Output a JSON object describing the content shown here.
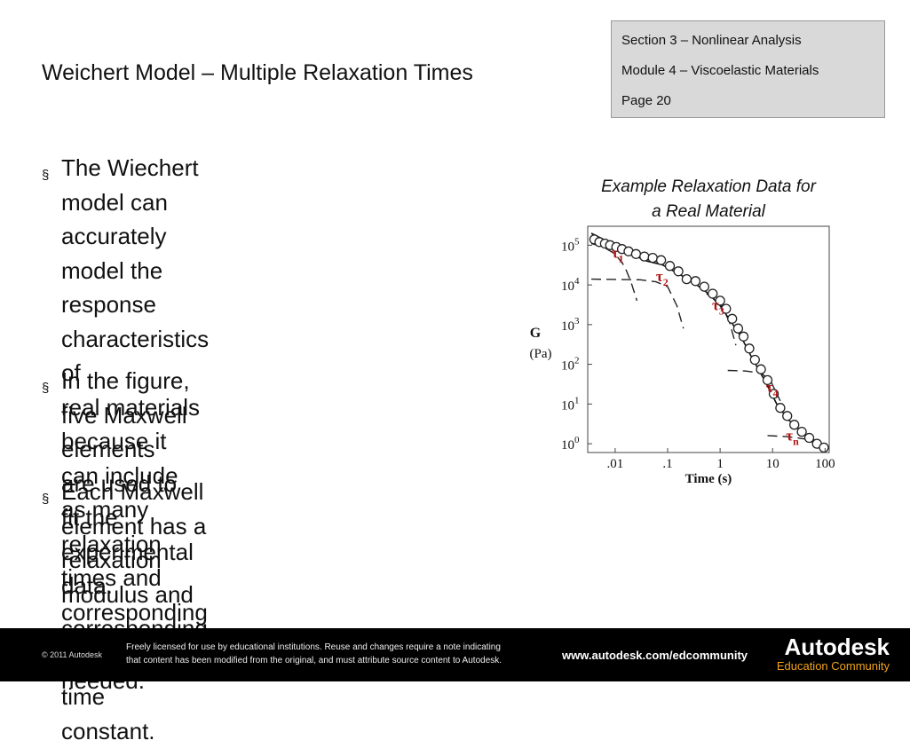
{
  "slide": {
    "title": "Weichert Model – Multiple Relaxation Times",
    "section": "Section 3 – Nonlinear Analysis",
    "module": "Module 4 – Viscoelastic Materials",
    "page": "Page 20",
    "bullets": [
      {
        "text": "The Wiechert model can accurately\nmodel the response characteristics of\nreal materials because it can include\nas many relaxation times and\ncorresponding moduli as needed."
      },
      {
        "text": "In the figure, five Maxwell elements\nare used to fit the experimental data."
      },
      {
        "text": "Each Maxwell element has a\nrelaxation modulus and\ncorresponding relaxation time\nconstant."
      }
    ],
    "bullet_mark": "§"
  },
  "figure": {
    "title_line1": "Example Relaxation Data for",
    "title_line2": "a Real Material"
  },
  "chart_data": {
    "type": "scatter",
    "xlabel": "Time (s)",
    "ylabel_line1": "G",
    "ylabel_line2": "(Pa)",
    "x_scale": "log",
    "y_scale": "log",
    "xlim": [
      0.003,
      120
    ],
    "ylim": [
      0.6,
      300000
    ],
    "x_ticks": [
      {
        "value": 0.01,
        "label": ".01"
      },
      {
        "value": 0.1,
        "label": ".1"
      },
      {
        "value": 1,
        "label": "1"
      },
      {
        "value": 10,
        "label": "10"
      },
      {
        "value": 100,
        "label": "100"
      }
    ],
    "y_ticks": [
      {
        "value": 1,
        "base": "10",
        "exp": "0"
      },
      {
        "value": 10,
        "base": "10",
        "exp": "1"
      },
      {
        "value": 100,
        "base": "10",
        "exp": "2"
      },
      {
        "value": 1000,
        "base": "10",
        "exp": "3"
      },
      {
        "value": 10000,
        "base": "10",
        "exp": "4"
      },
      {
        "value": 100000,
        "base": "10",
        "exp": "5"
      }
    ],
    "points": [
      {
        "x": 0.004,
        "y": 140000
      },
      {
        "x": 0.005,
        "y": 120000
      },
      {
        "x": 0.0064,
        "y": 110000
      },
      {
        "x": 0.008,
        "y": 100000
      },
      {
        "x": 0.0105,
        "y": 90000
      },
      {
        "x": 0.0135,
        "y": 80000
      },
      {
        "x": 0.018,
        "y": 70000
      },
      {
        "x": 0.025,
        "y": 60000
      },
      {
        "x": 0.036,
        "y": 52000
      },
      {
        "x": 0.052,
        "y": 48000
      },
      {
        "x": 0.075,
        "y": 42000
      },
      {
        "x": 0.11,
        "y": 30000
      },
      {
        "x": 0.16,
        "y": 22000
      },
      {
        "x": 0.23,
        "y": 14000
      },
      {
        "x": 0.34,
        "y": 12500
      },
      {
        "x": 0.5,
        "y": 9000
      },
      {
        "x": 0.72,
        "y": 6000
      },
      {
        "x": 1.0,
        "y": 4000
      },
      {
        "x": 1.3,
        "y": 2500
      },
      {
        "x": 1.7,
        "y": 1400
      },
      {
        "x": 2.2,
        "y": 800
      },
      {
        "x": 2.8,
        "y": 500
      },
      {
        "x": 3.6,
        "y": 250
      },
      {
        "x": 4.6,
        "y": 130
      },
      {
        "x": 6.0,
        "y": 75
      },
      {
        "x": 8.0,
        "y": 40
      },
      {
        "x": 10.5,
        "y": 18
      },
      {
        "x": 14.0,
        "y": 8
      },
      {
        "x": 19.0,
        "y": 5
      },
      {
        "x": 26.0,
        "y": 3
      },
      {
        "x": 36.0,
        "y": 2
      },
      {
        "x": 50.0,
        "y": 1.4
      },
      {
        "x": 70.0,
        "y": 1
      },
      {
        "x": 95.0,
        "y": 0.8
      }
    ],
    "fit_curve": [
      {
        "x": 0.0035,
        "y": 200000
      },
      {
        "x": 0.006,
        "y": 140000
      },
      {
        "x": 0.01,
        "y": 100000
      },
      {
        "x": 0.02,
        "y": 60000
      },
      {
        "x": 0.04,
        "y": 40000
      },
      {
        "x": 0.08,
        "y": 32000
      },
      {
        "x": 0.15,
        "y": 20000
      },
      {
        "x": 0.3,
        "y": 12000
      },
      {
        "x": 0.6,
        "y": 6000
      },
      {
        "x": 1.0,
        "y": 3000
      },
      {
        "x": 1.6,
        "y": 1200
      },
      {
        "x": 2.5,
        "y": 500
      },
      {
        "x": 4.0,
        "y": 150
      },
      {
        "x": 7.0,
        "y": 40
      },
      {
        "x": 12.0,
        "y": 10
      },
      {
        "x": 20.0,
        "y": 4
      },
      {
        "x": 40.0,
        "y": 1.8
      },
      {
        "x": 90.0,
        "y": 0.9
      }
    ],
    "element_curves": [
      [
        {
          "x": 0.0035,
          "y": 110000
        },
        {
          "x": 0.006,
          "y": 90000
        },
        {
          "x": 0.01,
          "y": 60000
        },
        {
          "x": 0.015,
          "y": 30000
        },
        {
          "x": 0.02,
          "y": 12000
        },
        {
          "x": 0.026,
          "y": 4000
        }
      ],
      [
        {
          "x": 0.0035,
          "y": 14000
        },
        {
          "x": 0.03,
          "y": 13500
        },
        {
          "x": 0.06,
          "y": 12000
        },
        {
          "x": 0.1,
          "y": 9000
        },
        {
          "x": 0.15,
          "y": 3000
        },
        {
          "x": 0.2,
          "y": 800
        }
      ],
      [
        {
          "x": 0.55,
          "y": 6000
        },
        {
          "x": 1.0,
          "y": 3500
        },
        {
          "x": 1.5,
          "y": 1200
        },
        {
          "x": 2.0,
          "y": 300
        }
      ],
      [
        {
          "x": 1.4,
          "y": 70
        },
        {
          "x": 3.0,
          "y": 68
        },
        {
          "x": 6.0,
          "y": 60
        },
        {
          "x": 9.0,
          "y": 40
        },
        {
          "x": 14.0,
          "y": 12
        }
      ],
      [
        {
          "x": 8.0,
          "y": 1.6
        },
        {
          "x": 20.0,
          "y": 1.5
        },
        {
          "x": 45.0,
          "y": 1.3
        },
        {
          "x": 75.0,
          "y": 0.9
        },
        {
          "x": 100.0,
          "y": 0.6
        }
      ]
    ],
    "annotations": [
      {
        "label": "τ",
        "sub": "1",
        "x": 0.0085,
        "y": 48000
      },
      {
        "label": "τ",
        "sub": "2",
        "x": 0.06,
        "y": 12500
      },
      {
        "label": "τ",
        "sub": "3",
        "x": 0.7,
        "y": 2300
      },
      {
        "label": "τ",
        "sub": "4",
        "x": 7.5,
        "y": 20
      },
      {
        "label": "τ",
        "sub": "n",
        "x": 18.0,
        "y": 1.2
      }
    ]
  },
  "footer": {
    "copyright": "© 2011 Autodesk",
    "license": "Freely licensed for use by educational institutions. Reuse and changes require a note indicating\nthat content has been modified from the original, and must attribute source content to Autodesk.",
    "url": "www.autodesk.com/edcommunity",
    "logo_word": "Autodesk",
    "logo_sub": "Education Community"
  },
  "colors": {
    "annotation": "#b01212",
    "footer_bg": "#000000",
    "logo_accent": "#f2a31b",
    "info_box_bg": "#d9d9d9"
  }
}
